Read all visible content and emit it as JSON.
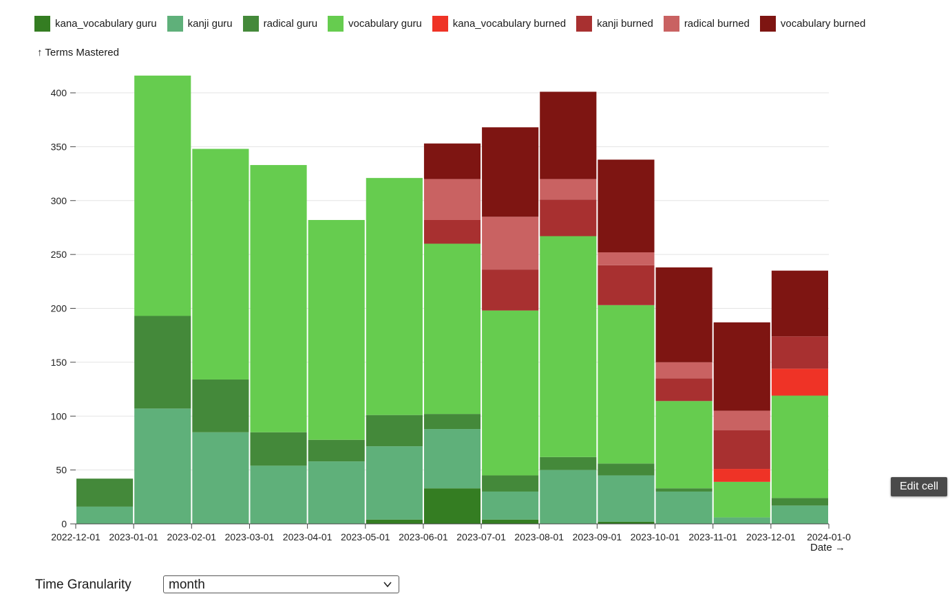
{
  "chart_data": {
    "type": "bar",
    "stacked": true,
    "ylabel": "↑ Terms Mastered",
    "xlabel": "Date →",
    "ylim": [
      0,
      430
    ],
    "yticks": [
      0,
      50,
      100,
      150,
      200,
      250,
      300,
      350,
      400
    ],
    "grid": true,
    "legend_position": "top",
    "x_tick_labels": [
      "2022-12-01",
      "2023-01-01",
      "2023-02-01",
      "2023-03-01",
      "2023-04-01",
      "2023-05-01",
      "2023-06-01",
      "2023-07-01",
      "2023-08-01",
      "2023-09-01",
      "2023-10-01",
      "2023-11-01",
      "2023-12-01",
      "2024-01-0"
    ],
    "categories": [
      "2022-12",
      "2023-01",
      "2023-02",
      "2023-03",
      "2023-04",
      "2023-05",
      "2023-06",
      "2023-07",
      "2023-08",
      "2023-09",
      "2023-10",
      "2023-11",
      "2023-12"
    ],
    "series": [
      {
        "name": "kana_vocabulary guru",
        "color": "#347d22",
        "values": [
          0,
          0,
          0,
          0,
          0,
          4,
          33,
          4,
          0,
          2,
          0,
          0,
          0
        ]
      },
      {
        "name": "kanji guru",
        "color": "#5fb07a",
        "values": [
          16,
          107,
          85,
          54,
          58,
          68,
          55,
          26,
          50,
          43,
          30,
          6,
          17
        ]
      },
      {
        "name": "radical guru",
        "color": "#44893a",
        "values": [
          26,
          86,
          49,
          31,
          20,
          29,
          14,
          15,
          12,
          11,
          3,
          0,
          7
        ]
      },
      {
        "name": "vocabulary guru",
        "color": "#66cc4f",
        "values": [
          0,
          223,
          214,
          248,
          204,
          220,
          158,
          153,
          205,
          147,
          81,
          33,
          95
        ]
      },
      {
        "name": "kana_vocabulary burned",
        "color": "#ef3326",
        "values": [
          0,
          0,
          0,
          0,
          0,
          0,
          0,
          0,
          0,
          0,
          0,
          12,
          25
        ]
      },
      {
        "name": "kanji burned",
        "color": "#a83030",
        "values": [
          0,
          0,
          0,
          0,
          0,
          0,
          22,
          38,
          34,
          37,
          21,
          36,
          30
        ]
      },
      {
        "name": "radical burned",
        "color": "#c96262",
        "values": [
          0,
          0,
          0,
          0,
          0,
          0,
          38,
          49,
          19,
          12,
          15,
          18,
          0
        ]
      },
      {
        "name": "vocabulary burned",
        "color": "#7e1512",
        "values": [
          0,
          0,
          0,
          0,
          0,
          0,
          33,
          83,
          81,
          86,
          88,
          82,
          61
        ]
      }
    ]
  },
  "controls": {
    "granularity_label": "Time Granularity",
    "granularity_value": "month"
  },
  "tooltip": {
    "text": "Edit cell"
  },
  "icons": {
    "dropdown": "chevron-down-icon"
  }
}
